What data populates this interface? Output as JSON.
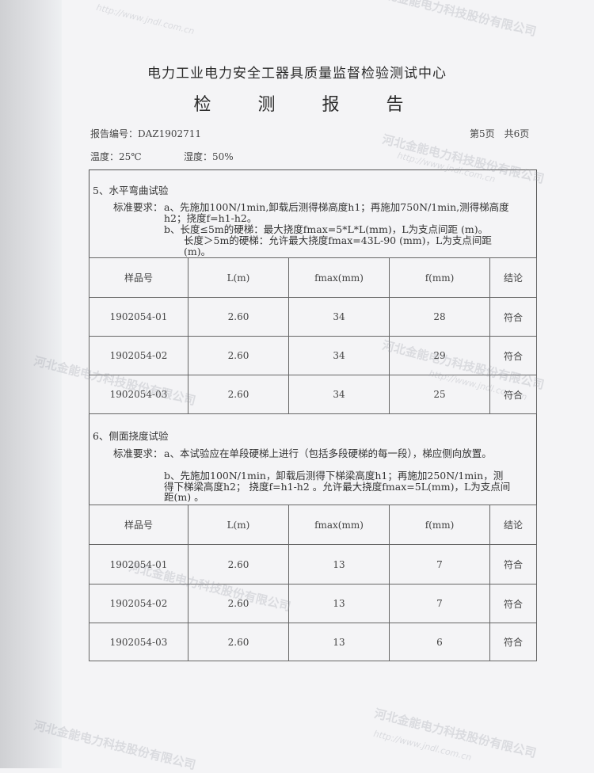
{
  "header": {
    "org": "电力工业电力安全工器具质量监督检验测试中心",
    "title": "检 测 报 告",
    "report_no": "报告编号：DAZ1902711",
    "page": "第5页　共6页",
    "temperature": "温度：25℃",
    "humidity": "湿度：50%"
  },
  "watermark": {
    "company": "河北金能电力科技股份有限公司",
    "url": "http://www.jndl.com.cn"
  },
  "columns": [
    "样品号",
    "L(m)",
    "fmax(mm)",
    "f(mm)",
    "结论"
  ],
  "section5": {
    "title": "5、水平弯曲试验",
    "req_label": "标准要求：",
    "a": "a、先施加100N/1min,卸载后测得梯高度h1；再施加750N/1min,测得梯高度h2；挠度f=h1-h2。",
    "b1": "b、长度≤5m的硬梯：最大挠度fmax=5*L*L(mm)，L为支点间距 (m)。",
    "b2": "长度＞5m的硬梯：允许最大挠度fmax=43L-90 (mm)，L为支点间距(m)。",
    "rows": [
      [
        "1902054-01",
        "2.60",
        "34",
        "28",
        "符合"
      ],
      [
        "1902054-02",
        "2.60",
        "34",
        "29",
        "符合"
      ],
      [
        "1902054-03",
        "2.60",
        "34",
        "25",
        "符合"
      ]
    ]
  },
  "section6": {
    "title": "6、侧面挠度试验",
    "req_label": "标准要求：",
    "a": "a、本试验应在单段硬梯上进行（包括多段硬梯的每一段），梯应侧向放置。",
    "b": "b、先施加100N/1min，卸载后测得下梯梁高度h1；再施加250N/1min，测得下梯梁高度h2； 挠度f=h1-h2 。允许最大挠度fmax=5L(mm)，L为支点间距(m) 。",
    "rows": [
      [
        "1902054-01",
        "2.60",
        "13",
        "7",
        "符合"
      ],
      [
        "1902054-02",
        "2.60",
        "13",
        "7",
        "符合"
      ],
      [
        "1902054-03",
        "2.60",
        "13",
        "6",
        "符合"
      ]
    ]
  }
}
